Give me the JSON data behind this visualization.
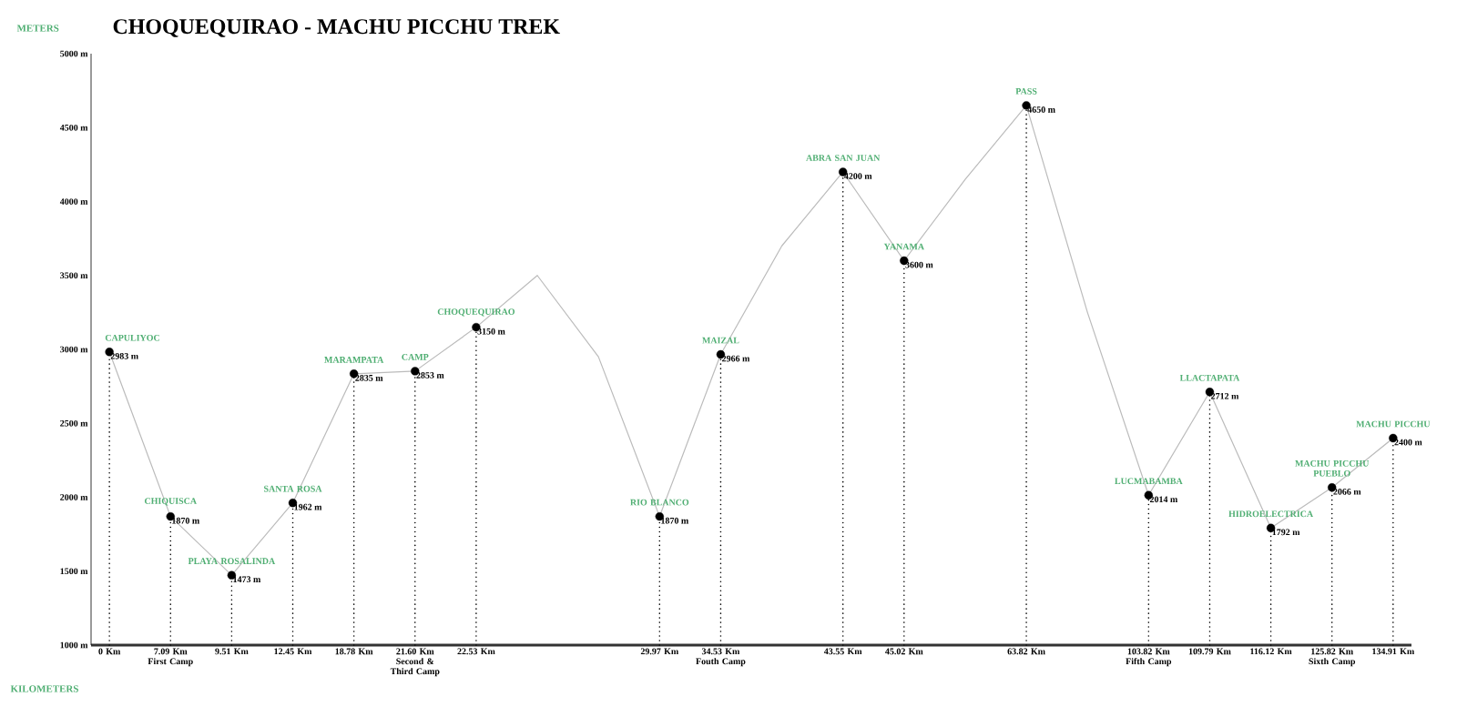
{
  "chart_data": {
    "type": "line",
    "title": "CHOQUEQUIRAO - MACHU PICCHU TREK",
    "ylabel": "METERS",
    "xlabel": "KILOMETERS",
    "categories": [
      "0 Km",
      "7.09 Km First Camp",
      "9.51 Km",
      "12.45 Km",
      "18.78 Km",
      "21.60 Km Second & Third Camp",
      "22.53 Km",
      null,
      null,
      "29.97 Km",
      "34.53 Km Fouth Camp",
      null,
      "43.55 Km",
      "45.02 Km",
      null,
      "63.82 Km",
      null,
      "103.82 Km Fifth Camp",
      "109.79 Km",
      "116.12 Km",
      "125.82 Km Sixth Camp",
      "134.91 Km"
    ],
    "series": [
      {
        "color": "#bbbbbb",
        "values": [
          2983,
          1870,
          1473,
          1962,
          2835,
          2853,
          3150,
          3500,
          2950,
          1870,
          2966,
          3700,
          4200,
          3600,
          4150,
          4650,
          3250,
          2014,
          2712,
          1792,
          2066,
          2400
        ],
        "value_labels": [
          "2983 m",
          "1870 m",
          "1473 m",
          "1962 m",
          "2835 m",
          "2853 m",
          "3150 m",
          null,
          null,
          "1870 m",
          "2966 m",
          null,
          "4200 m",
          "3600 m",
          null,
          "4650 m",
          null,
          "2014 m",
          "2712 m",
          "1792 m",
          "2066 m",
          "2400 m"
        ]
      }
    ],
    "marker": "circle",
    "line_style": "solid",
    "ylim": [
      1000,
      5000
    ],
    "yticks": [
      {
        "value": 1000,
        "label": "1000 m"
      },
      {
        "value": 1500,
        "label": "1500 m"
      },
      {
        "value": 2000,
        "label": "2000 m"
      },
      {
        "value": 2500,
        "label": "2500 m"
      },
      {
        "value": 3000,
        "label": "3000 m"
      },
      {
        "value": 3500,
        "label": "3500 m"
      },
      {
        "value": 4000,
        "label": "4000 m"
      },
      {
        "value": 4500,
        "label": "4500 m"
      },
      {
        "value": 5000,
        "label": "5000 m"
      }
    ],
    "annotations": [
      {
        "text": "CAPULIYOC",
        "x": "0 Km",
        "y": 2983
      },
      {
        "text": "CHIQUISCA",
        "x": "7.09 Km First Camp",
        "y": 1870
      },
      {
        "text": "PLAYA ROSALINDA",
        "x": "9.51 Km",
        "y": 1473
      },
      {
        "text": "SANTA ROSA",
        "x": "12.45 Km",
        "y": 1962
      },
      {
        "text": "MARAMPATA",
        "x": "18.78 Km",
        "y": 2835
      },
      {
        "text": "CAMP",
        "x": "21.60 Km Second & Third Camp",
        "y": 2853
      },
      {
        "text": "CHOQUEQUIRAO",
        "x": "22.53 Km",
        "y": 3150
      },
      {
        "text": "RIO BLANCO",
        "x": "29.97 Km",
        "y": 1870
      },
      {
        "text": "MAIZAL",
        "x": "34.53 Km Fouth Camp",
        "y": 2966
      },
      {
        "text": "ABRA SAN JUAN",
        "x": "43.55 Km",
        "y": 4200
      },
      {
        "text": "YANAMA",
        "x": "45.02 Km",
        "y": 3600
      },
      {
        "text": "PASS",
        "x": "63.82 Km",
        "y": 4650
      },
      {
        "text": "LUCMABAMBA",
        "x": "103.82 Km Fifth Camp",
        "y": 2014
      },
      {
        "text": "LLACTAPATA",
        "x": "109.79 Km",
        "y": 2712
      },
      {
        "text": "HIDROELECTRICA",
        "x": "116.12 Km",
        "y": 1792
      },
      {
        "text": "MACHU PICCHU PUEBLO",
        "x": "125.82 Km Sixth Camp",
        "y": 2066
      },
      {
        "text": "MACHU PICCHU",
        "x": "134.91 Km",
        "y": 2400
      }
    ]
  }
}
